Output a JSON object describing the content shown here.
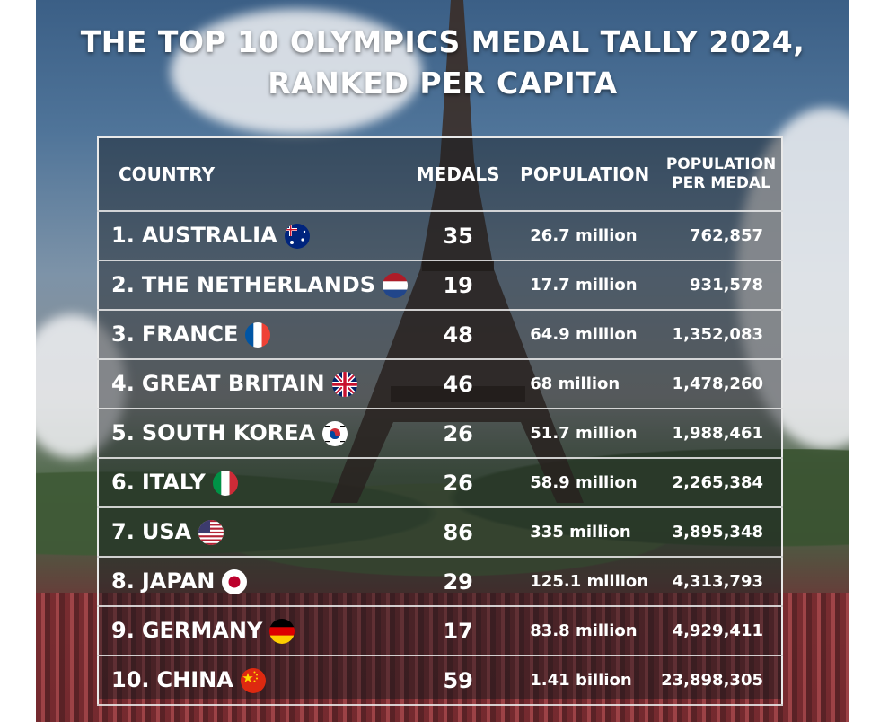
{
  "title_line1": "THE TOP 10 OLYMPICS MEDAL TALLY 2024,",
  "title_line2": "RANKED PER CAPITA",
  "headers": {
    "country": "COUNTRY",
    "medals": "MEDALS",
    "population": "POPULATION",
    "per_medal_line1": "POPULATION",
    "per_medal_line2": "PER MEDAL"
  },
  "rows": [
    {
      "rank": "1.",
      "country": "AUSTRALIA",
      "flag": "australia-flag-icon",
      "medals": "35",
      "population": "26.7 million",
      "per_medal": "762,857"
    },
    {
      "rank": "2.",
      "country": "THE NETHERLANDS",
      "flag": "netherlands-flag-icon",
      "medals": "19",
      "population": "17.7 million",
      "per_medal": "931,578"
    },
    {
      "rank": "3.",
      "country": "FRANCE",
      "flag": "france-flag-icon",
      "medals": "48",
      "population": "64.9 million",
      "per_medal": "1,352,083"
    },
    {
      "rank": "4.",
      "country": "GREAT BRITAIN",
      "flag": "uk-flag-icon",
      "medals": "46",
      "population": "68 million",
      "per_medal": "1,478,260"
    },
    {
      "rank": "5.",
      "country": "SOUTH KOREA",
      "flag": "south-korea-flag-icon",
      "medals": "26",
      "population": "51.7 million",
      "per_medal": "1,988,461"
    },
    {
      "rank": "6.",
      "country": "ITALY",
      "flag": "italy-flag-icon",
      "medals": "26",
      "population": "58.9 million",
      "per_medal": "2,265,384"
    },
    {
      "rank": "7.",
      "country": "USA",
      "flag": "usa-flag-icon",
      "medals": "86",
      "population": "335 million",
      "per_medal": "3,895,348"
    },
    {
      "rank": "8.",
      "country": "JAPAN",
      "flag": "japan-flag-icon",
      "medals": "29",
      "population": "125.1 million",
      "per_medal": "4,313,793"
    },
    {
      "rank": "9.",
      "country": "GERMANY",
      "flag": "germany-flag-icon",
      "medals": "17",
      "population": "83.8 million",
      "per_medal": "4,929,411"
    },
    {
      "rank": "10.",
      "country": "CHINA",
      "flag": "china-flag-icon",
      "medals": "59",
      "population": "1.41 billion",
      "per_medal": "23,898,305"
    }
  ],
  "colors": {
    "text": "#ffffff",
    "border": "#e9e9e9"
  }
}
